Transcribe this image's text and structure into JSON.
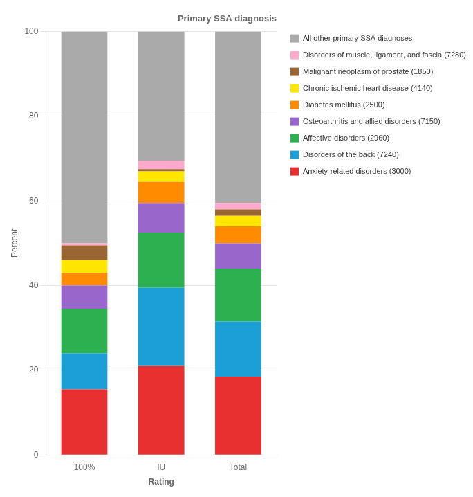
{
  "chart_data": {
    "type": "bar",
    "title": "Primary SSA diagnosis",
    "xlabel": "Rating",
    "ylabel": "Percent",
    "categories": [
      "100%",
      "IU",
      "Total"
    ],
    "stacked": true,
    "series": [
      {
        "name": "Anxiety-related disorders (3000)",
        "color": "#E83030",
        "values": [
          15.5,
          21.0,
          18.5
        ]
      },
      {
        "name": "Disorders of the back (7240)",
        "color": "#1B9FD4",
        "values": [
          8.5,
          18.5,
          13.0
        ]
      },
      {
        "name": "Affective disorders (2960)",
        "color": "#2DB050",
        "values": [
          10.5,
          13.0,
          12.5
        ]
      },
      {
        "name": "Osteoarthritis and allied disorders (7150)",
        "color": "#9966CC",
        "values": [
          5.5,
          7.0,
          6.0
        ]
      },
      {
        "name": "Diabetes mellitus (2500)",
        "color": "#FF8C00",
        "values": [
          3.0,
          5.0,
          4.0
        ]
      },
      {
        "name": "Chronic ischemic heart disease (4140)",
        "color": "#FFE600",
        "values": [
          3.0,
          2.5,
          2.5
        ]
      },
      {
        "name": "Malignant neoplasm of prostate (1850)",
        "color": "#996633",
        "values": [
          3.5,
          0.5,
          1.5
        ]
      },
      {
        "name": "Disorders of muscle, ligament, and fascia (7280)",
        "color": "#FFAACC",
        "values": [
          0.5,
          2.0,
          1.5
        ]
      },
      {
        "name": "All other primary SSA diagnoses",
        "color": "#AAAAAA",
        "values": [
          50.0,
          30.5,
          40.5
        ]
      }
    ],
    "ylim": [
      0,
      100
    ],
    "yticks": [
      0,
      20,
      40,
      60,
      80,
      100
    ],
    "grid": true,
    "legend": "right"
  }
}
